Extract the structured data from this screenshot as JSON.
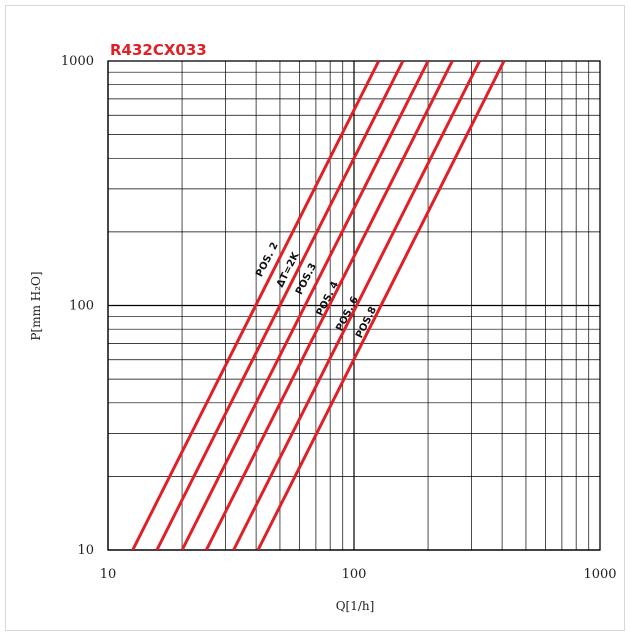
{
  "chart_data": {
    "type": "line",
    "title": "R432CX033",
    "xlabel": "Q[1/h]",
    "ylabel": "P[mm H₂O]",
    "x_scale": "log",
    "y_scale": "log",
    "xlim": [
      10,
      1000
    ],
    "ylim": [
      10,
      1000
    ],
    "x_ticks": [
      "10",
      "100",
      "1000"
    ],
    "y_ticks": [
      "10",
      "100",
      "1000"
    ],
    "grid": true,
    "line_color": "#e02027",
    "series": [
      {
        "name": "POS. 2",
        "x": [
          12.6,
          126
        ],
        "y": [
          10,
          1000
        ]
      },
      {
        "name": "ΔT=2K",
        "x": [
          15.8,
          158
        ],
        "y": [
          10,
          1000
        ]
      },
      {
        "name": "POS.3",
        "x": [
          20,
          200
        ],
        "y": [
          10,
          1000
        ]
      },
      {
        "name": "POS. 4",
        "x": [
          25.1,
          251
        ],
        "y": [
          10,
          1000
        ]
      },
      {
        "name": "POS. 6",
        "x": [
          32.4,
          324
        ],
        "y": [
          10,
          1000
        ]
      },
      {
        "name": "POS.8",
        "x": [
          40.7,
          407
        ],
        "y": [
          10,
          1000
        ]
      }
    ],
    "labels": [
      {
        "text": "POS. 2",
        "x": 42,
        "y": 130
      },
      {
        "text": "ΔT=2K",
        "x": 51,
        "y": 118
      },
      {
        "text": "POS.3",
        "x": 61,
        "y": 110
      },
      {
        "text": "POS. 4",
        "x": 74,
        "y": 90
      },
      {
        "text": "POS. 6",
        "x": 89,
        "y": 78
      },
      {
        "text": "POS.8",
        "x": 107,
        "y": 73
      }
    ]
  }
}
